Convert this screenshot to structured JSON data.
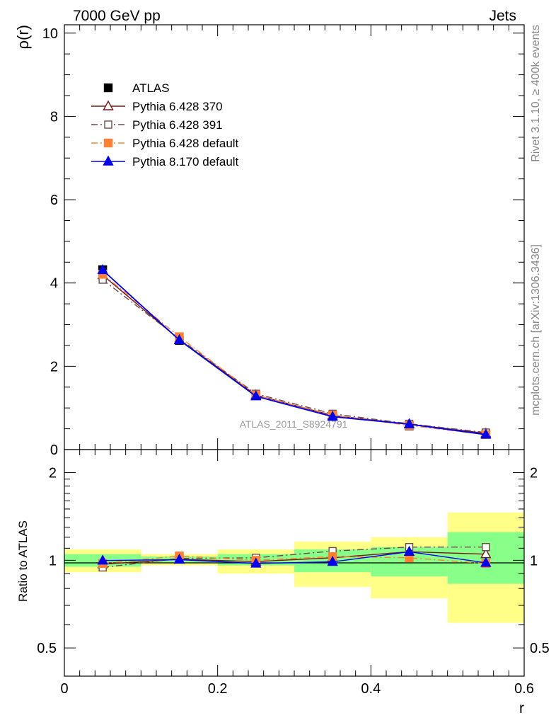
{
  "header": {
    "energy_label": "7000 GeV pp",
    "process_label": "Jets"
  },
  "side_labels": {
    "rivet": "Rivet 3.1.10, ≥ 400k events",
    "source": "mcplots.cern.ch [arXiv:1306.3436]"
  },
  "analysis_label": "ATLAS_2011_S8924791",
  "chart_data": [
    {
      "type": "line",
      "panel": "main",
      "ylabel": "ρ(r)",
      "xlabel": "",
      "xlim": [
        0,
        0.6
      ],
      "ylim": [
        0,
        10.2
      ],
      "yticks": [
        "0",
        "2",
        "4",
        "6",
        "8",
        "10"
      ],
      "x": [
        0.05,
        0.15,
        0.25,
        0.35,
        0.45,
        0.55
      ],
      "legend_position": "top-left",
      "series": [
        {
          "name": "ATLAS",
          "color": "#000000",
          "marker": "square-filled",
          "style": "points",
          "values": [
            4.32,
            2.62,
            1.31,
            0.8,
            0.57,
            0.37
          ],
          "errors": [
            0.12,
            0.05,
            0.04,
            0.04,
            0.04,
            0.04
          ]
        },
        {
          "name": "Pythia 6.428 370",
          "color": "#7b1515",
          "marker": "triangle-open",
          "style": "solid",
          "values": [
            4.19,
            2.64,
            1.31,
            0.82,
            0.61,
            0.39
          ]
        },
        {
          "name": "Pythia 6.428 391",
          "color": "#6e4a4a",
          "marker": "square-open",
          "style": "dashdot",
          "values": [
            4.08,
            2.66,
            1.34,
            0.86,
            0.62,
            0.41
          ]
        },
        {
          "name": "Pythia 6.428 default",
          "color": "#ff8030",
          "marker": "square-filled",
          "style": "dashdot",
          "values": [
            4.21,
            2.71,
            1.31,
            0.83,
            0.58,
            0.36
          ]
        },
        {
          "name": "Pythia 8.170 default",
          "color": "#0000ee",
          "marker": "triangle-filled",
          "style": "solid",
          "values": [
            4.31,
            2.63,
            1.28,
            0.79,
            0.61,
            0.36
          ]
        }
      ]
    },
    {
      "type": "line",
      "panel": "ratio",
      "ylabel": "Ratio to ATLAS",
      "xlabel": "r",
      "xlim": [
        0,
        0.6
      ],
      "ylim": [
        0.4,
        2.4
      ],
      "scale": "log",
      "xticks": [
        "0",
        "0.2",
        "0.4",
        "0.6"
      ],
      "yticks": [
        "0.5",
        "1",
        "2"
      ],
      "x": [
        0.05,
        0.15,
        0.25,
        0.35,
        0.45,
        0.55
      ],
      "bands": {
        "green": [
          [
            0.95,
            1.05
          ],
          [
            0.98,
            1.03
          ],
          [
            0.96,
            1.05
          ],
          [
            0.91,
            1.09
          ],
          [
            0.88,
            1.11
          ],
          [
            0.83,
            1.25
          ]
        ],
        "yellow": [
          [
            0.91,
            1.09
          ],
          [
            0.96,
            1.05
          ],
          [
            0.9,
            1.09
          ],
          [
            0.81,
            1.16
          ],
          [
            0.74,
            1.2
          ],
          [
            0.61,
            1.46
          ]
        ]
      },
      "series": [
        {
          "name": "Pythia 6.428 370",
          "values": [
            0.97,
            1.008,
            0.99,
            1.02,
            1.07,
            1.05
          ]
        },
        {
          "name": "Pythia 6.428 391",
          "values": [
            0.945,
            1.015,
            1.02,
            1.075,
            1.11,
            1.11
          ]
        },
        {
          "name": "Pythia 6.428 default",
          "values": [
            0.975,
            1.035,
            1.0,
            1.03,
            1.02,
            0.975
          ]
        },
        {
          "name": "Pythia 8.170 default",
          "values": [
            0.998,
            1.005,
            0.975,
            0.988,
            1.07,
            0.98
          ]
        }
      ]
    }
  ]
}
